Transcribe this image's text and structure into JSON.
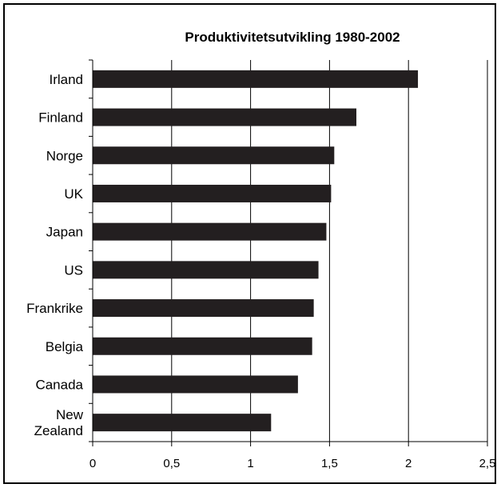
{
  "chart_data": {
    "type": "bar",
    "orientation": "horizontal",
    "title": "Produktivitetsutvikling 1980-2002",
    "xlabel": "",
    "ylabel": "",
    "categories": [
      "Irland",
      "Finland",
      "Norge",
      "UK",
      "Japan",
      "US",
      "Frankrike",
      "Belgia",
      "Canada",
      "New Zealand"
    ],
    "category_lines": [
      [
        "Irland"
      ],
      [
        "Finland"
      ],
      [
        "Norge"
      ],
      [
        "UK"
      ],
      [
        "Japan"
      ],
      [
        "US"
      ],
      [
        "Frankrike"
      ],
      [
        "Belgia"
      ],
      [
        "Canada"
      ],
      [
        "New",
        "Zealand"
      ]
    ],
    "values": [
      2.06,
      1.67,
      1.53,
      1.51,
      1.48,
      1.43,
      1.4,
      1.39,
      1.3,
      1.13
    ],
    "xlim": [
      0,
      2.5
    ],
    "xticks": [
      0,
      0.5,
      1,
      1.5,
      2,
      2.5
    ],
    "xtick_labels": [
      "0",
      "0,5",
      "1",
      "1,5",
      "2",
      "2,5"
    ],
    "grid": "vertical",
    "legend": "none",
    "bar_color": "#231f20"
  }
}
